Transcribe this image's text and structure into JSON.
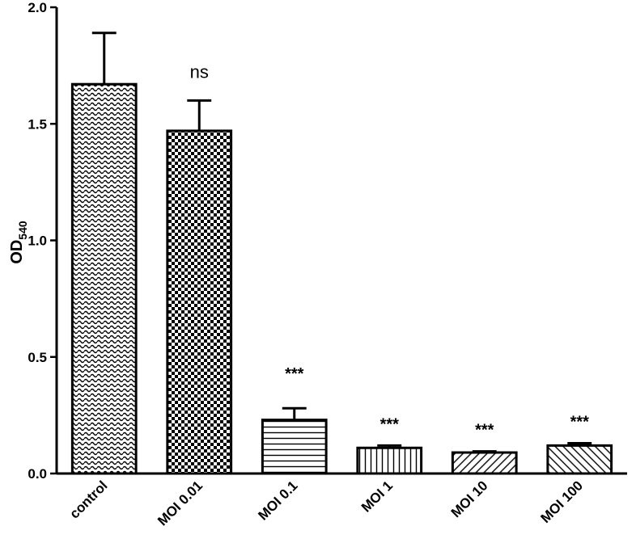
{
  "chart_data": {
    "type": "bar",
    "title": "",
    "xlabel": "",
    "ylabel": "OD",
    "ylabel_subscript": "540",
    "ylim": [
      0,
      2.0
    ],
    "yticks": [
      "0.0",
      "0.5",
      "1.0",
      "1.5",
      "2.0"
    ],
    "categories": [
      "control",
      "MOI 0.01",
      "MOI 0.1",
      "MOI 1",
      "MOI 10",
      "MOI 100"
    ],
    "values": [
      1.67,
      1.47,
      0.23,
      0.11,
      0.09,
      0.12
    ],
    "error": [
      0.22,
      0.13,
      0.05,
      0.01,
      0.005,
      0.01
    ],
    "significance": [
      "",
      "ns",
      "***",
      "***",
      "***",
      "***"
    ],
    "patterns": [
      "waves",
      "checker",
      "horizontal-lines",
      "vertical-lines",
      "diagonal-lines",
      "back-diagonal-lines"
    ],
    "grid": false
  }
}
